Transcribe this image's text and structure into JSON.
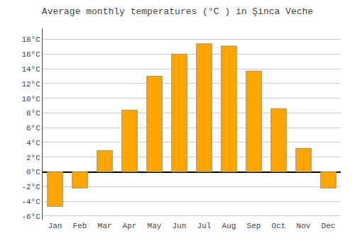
{
  "chart_data": {
    "type": "bar",
    "title": "Average monthly temperatures (°C ) in Şinca Veche",
    "categories": [
      "Jan",
      "Feb",
      "Mar",
      "Apr",
      "May",
      "Jun",
      "Jul",
      "Aug",
      "Sep",
      "Oct",
      "Nov",
      "Dec"
    ],
    "values": [
      -4.7,
      -2.2,
      2.9,
      8.4,
      13.0,
      16.0,
      17.4,
      17.1,
      13.7,
      8.6,
      3.2,
      -2.2
    ],
    "color": "#FFA500",
    "ylim": [
      -6.5,
      19.5
    ],
    "yticks": [
      {
        "value": -6,
        "label": "-6°C"
      },
      {
        "value": -4,
        "label": "-4°C"
      },
      {
        "value": -2,
        "label": "-2°C"
      },
      {
        "value": 0,
        "label": "0°C"
      },
      {
        "value": 2,
        "label": "2°C"
      },
      {
        "value": 4,
        "label": "4°C"
      },
      {
        "value": 6,
        "label": "6°C"
      },
      {
        "value": 8,
        "label": "8°C"
      },
      {
        "value": 10,
        "label": "10°C"
      },
      {
        "value": 12,
        "label": "12°C"
      },
      {
        "value": 14,
        "label": "14°C"
      },
      {
        "value": 16,
        "label": "16°C"
      },
      {
        "value": 18,
        "label": "18°C"
      }
    ],
    "grid": true
  }
}
